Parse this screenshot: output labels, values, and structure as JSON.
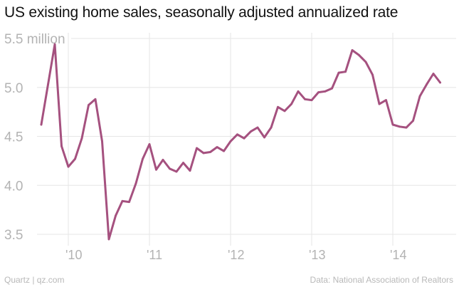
{
  "chart_data": {
    "type": "line",
    "title": "US existing home sales, seasonally adjusted annualized rate",
    "y_unit_label": "million",
    "xlabel": "",
    "ylabel": "",
    "ylim": [
      3.4,
      5.6
    ],
    "y_ticks": [
      {
        "value": 5.5,
        "label": "5.5 million"
      },
      {
        "value": 5.0,
        "label": "5.0"
      },
      {
        "value": 4.5,
        "label": "4.5"
      },
      {
        "value": 4.0,
        "label": "4.0"
      },
      {
        "value": 3.5,
        "label": "3.5"
      }
    ],
    "x_ticks": [
      {
        "date": "2010-01",
        "label": "'10"
      },
      {
        "date": "2011-01",
        "label": "'11"
      },
      {
        "date": "2012-01",
        "label": "'12"
      },
      {
        "date": "2013-01",
        "label": "'13"
      },
      {
        "date": "2014-01",
        "label": "'14"
      }
    ],
    "xlim": [
      "2009-06",
      "2014-09"
    ],
    "grid": true,
    "line_color": "#a5517f",
    "series": [
      {
        "x": [
          "2009-09",
          "2009-10",
          "2009-11",
          "2009-12",
          "2010-01",
          "2010-02",
          "2010-03",
          "2010-04",
          "2010-05",
          "2010-06",
          "2010-07",
          "2010-08",
          "2010-09",
          "2010-10",
          "2010-11",
          "2010-12",
          "2011-01",
          "2011-02",
          "2011-03",
          "2011-04",
          "2011-05",
          "2011-06",
          "2011-07",
          "2011-08",
          "2011-09",
          "2011-10",
          "2011-11",
          "2011-12",
          "2012-01",
          "2012-02",
          "2012-03",
          "2012-04",
          "2012-05",
          "2012-06",
          "2012-07",
          "2012-08",
          "2012-09",
          "2012-10",
          "2012-11",
          "2012-12",
          "2013-01",
          "2013-02",
          "2013-03",
          "2013-04",
          "2013-05",
          "2013-06",
          "2013-07",
          "2013-08",
          "2013-09",
          "2013-10",
          "2013-11",
          "2013-12",
          "2014-01",
          "2014-02",
          "2014-03",
          "2014-04",
          "2014-05",
          "2014-06",
          "2014-07",
          "2014-08"
        ],
        "values": [
          4.62,
          5.03,
          5.44,
          4.4,
          4.19,
          4.27,
          4.48,
          4.82,
          4.88,
          4.45,
          3.45,
          3.69,
          3.84,
          3.83,
          4.02,
          4.27,
          4.42,
          4.16,
          4.26,
          4.17,
          4.14,
          4.23,
          4.15,
          4.38,
          4.33,
          4.34,
          4.39,
          4.35,
          4.45,
          4.52,
          4.48,
          4.55,
          4.59,
          4.49,
          4.59,
          4.8,
          4.76,
          4.83,
          4.96,
          4.88,
          4.87,
          4.95,
          4.96,
          4.99,
          5.15,
          5.16,
          5.38,
          5.33,
          5.26,
          5.13,
          4.83,
          4.87,
          4.62,
          4.6,
          4.59,
          4.66,
          4.91,
          5.03,
          5.14,
          5.05
        ]
      }
    ]
  },
  "footer": {
    "source_left": "Quartz | qz.com",
    "source_right": "Data: National Association of Realtors"
  }
}
